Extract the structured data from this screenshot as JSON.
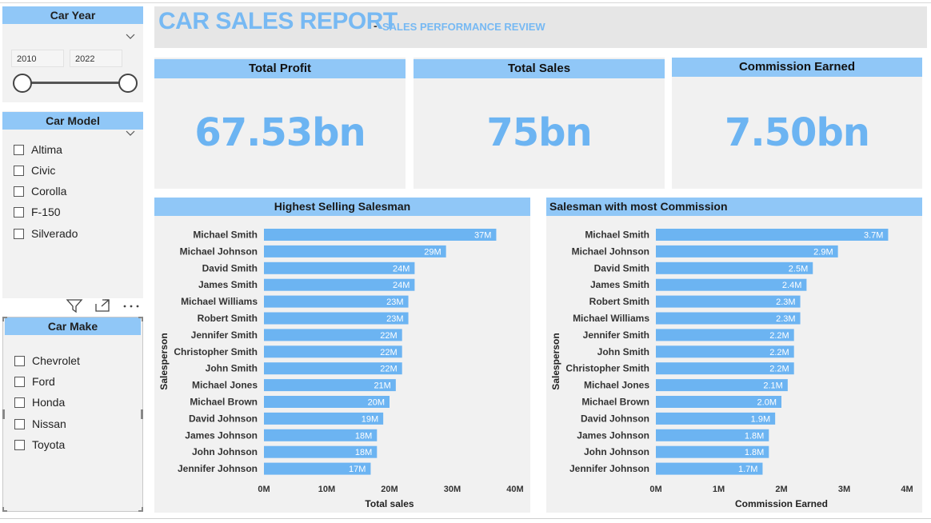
{
  "header": {
    "title": "CAR SALES REPORT",
    "dash": "-",
    "subtitle": "SALES PERFORMANCE REVIEW"
  },
  "slicers": {
    "car_year": {
      "title": "Car Year",
      "from": "2010",
      "to": "2022"
    },
    "car_model": {
      "title": "Car Model",
      "options": [
        "Altima",
        "Civic",
        "Corolla",
        "F-150",
        "Silverado"
      ]
    },
    "car_make": {
      "title": "Car Make",
      "options": [
        "Chevrolet",
        "Ford",
        "Honda",
        "Nissan",
        "Toyota"
      ]
    }
  },
  "kpis": {
    "total_profit": {
      "label": "Total Profit",
      "value": "67.53bn"
    },
    "total_sales": {
      "label": "Total Sales",
      "value": "75bn"
    },
    "commission_earned": {
      "label": "Commission Earned",
      "value": "7.50bn"
    }
  },
  "icons": [
    "chevron-down-icon",
    "filter-icon",
    "focus-mode-icon",
    "more-options-icon"
  ],
  "colors": {
    "accent": "#90c7f7",
    "bar": "#6cb4f2",
    "title": "#77b9f3",
    "panel": "#f1f1f1"
  },
  "chart_data": [
    {
      "type": "bar",
      "orientation": "horizontal",
      "title": "Highest Selling Salesman",
      "xlabel": "Total sales",
      "ylabel": "Salesperson",
      "xlim": [
        0,
        40
      ],
      "xticks": [
        "0M",
        "10M",
        "20M",
        "30M",
        "40M"
      ],
      "categories": [
        "Michael Smith",
        "Michael Johnson",
        "David Smith",
        "James Smith",
        "Michael Williams",
        "Robert Smith",
        "Jennifer Smith",
        "Christopher Smith",
        "John Smith",
        "Michael Jones",
        "Michael Brown",
        "David Johnson",
        "James Johnson",
        "John Johnson",
        "Jennifer Johnson"
      ],
      "values": [
        37,
        29,
        24,
        24,
        23,
        23,
        22,
        22,
        22,
        21,
        20,
        19,
        18,
        18,
        17
      ],
      "labels": [
        "37M",
        "29M",
        "24M",
        "24M",
        "23M",
        "23M",
        "22M",
        "22M",
        "22M",
        "21M",
        "20M",
        "19M",
        "18M",
        "18M",
        "17M"
      ]
    },
    {
      "type": "bar",
      "orientation": "horizontal",
      "title": "Salesman with most Commission",
      "xlabel": "Commission Earned",
      "ylabel": "Salesperson",
      "xlim": [
        0,
        4
      ],
      "xticks": [
        "0M",
        "1M",
        "2M",
        "3M",
        "4M"
      ],
      "categories": [
        "Michael Smith",
        "Michael Johnson",
        "David Smith",
        "James Smith",
        "Robert Smith",
        "Michael Williams",
        "Jennifer Smith",
        "John Smith",
        "Christopher Smith",
        "Michael Jones",
        "Michael Brown",
        "David Johnson",
        "James Johnson",
        "John Johnson",
        "Jennifer Johnson"
      ],
      "values": [
        3.7,
        2.9,
        2.5,
        2.4,
        2.3,
        2.3,
        2.2,
        2.2,
        2.2,
        2.1,
        2.0,
        1.9,
        1.8,
        1.8,
        1.7
      ],
      "labels": [
        "3.7M",
        "2.9M",
        "2.5M",
        "2.4M",
        "2.3M",
        "2.3M",
        "2.2M",
        "2.2M",
        "2.2M",
        "2.1M",
        "2.0M",
        "1.9M",
        "1.8M",
        "1.8M",
        "1.7M"
      ]
    }
  ]
}
